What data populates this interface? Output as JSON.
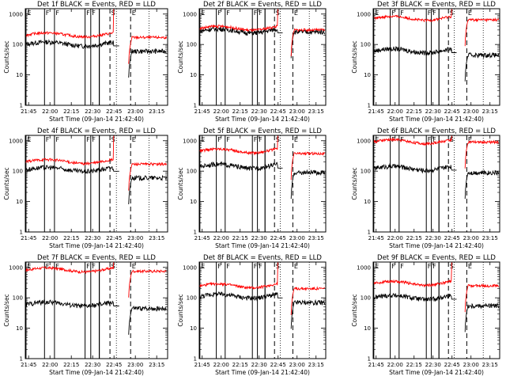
{
  "colors": {
    "events": "#000000",
    "lld": "#ff0000",
    "frame": "#000000",
    "background": "#ffffff"
  },
  "chart_data": [
    {
      "type": "line",
      "title": "Det 1f BLACK = Events, RED = LLD",
      "xlabel": "Start Time (09-Jan-14 21:42:40)",
      "ylabel": "Counts/sec",
      "events_level": 100,
      "lld_level": 200,
      "events_after": 60,
      "lld_after": 170
    },
    {
      "type": "line",
      "title": "Det 2f BLACK = Events, RED = LLD",
      "xlabel": "Start Time (09-Jan-14 21:42:40)",
      "ylabel": "Counts/sec",
      "events_level": 270,
      "lld_level": 330,
      "events_after": 260,
      "lld_after": 300
    },
    {
      "type": "line",
      "title": "Det 3f BLACK = Events, RED = LLD",
      "xlabel": "Start Time (09-Jan-14 21:42:40)",
      "ylabel": "Counts/sec",
      "events_level": 60,
      "lld_level": 700,
      "events_after": 45,
      "lld_after": 650
    },
    {
      "type": "line",
      "title": "Det 4f BLACK = Events, RED = LLD",
      "xlabel": "Start Time (09-Jan-14 21:42:40)",
      "ylabel": "Counts/sec",
      "events_level": 110,
      "lld_level": 200,
      "events_after": 60,
      "lld_after": 170
    },
    {
      "type": "line",
      "title": "Det 5f BLACK = Events, RED = LLD",
      "xlabel": "Start Time (09-Jan-14 21:42:40)",
      "ylabel": "Counts/sec",
      "events_level": 140,
      "lld_level": 450,
      "events_after": 90,
      "lld_after": 380
    },
    {
      "type": "line",
      "title": "Det 6f BLACK = Events, RED = LLD",
      "xlabel": "Start Time (09-Jan-14 21:42:40)",
      "ylabel": "Counts/sec",
      "events_level": 120,
      "lld_level": 900,
      "events_after": 90,
      "lld_after": 900
    },
    {
      "type": "line",
      "title": "Det 7f BLACK = Events, RED = LLD",
      "xlabel": "Start Time (09-Jan-14 21:42:40)",
      "ylabel": "Counts/sec",
      "events_level": 60,
      "lld_level": 800,
      "events_after": 45,
      "lld_after": 750
    },
    {
      "type": "line",
      "title": "Det 8f BLACK = Events, RED = LLD",
      "xlabel": "Start Time (09-Jan-14 21:42:40)",
      "ylabel": "Counts/sec",
      "events_level": 110,
      "lld_level": 240,
      "events_after": 70,
      "lld_after": 200
    },
    {
      "type": "line",
      "title": "Det 9f BLACK = Events, RED = LLD",
      "xlabel": "Start Time (09-Jan-14 21:42:40)",
      "ylabel": "Counts/sec",
      "events_level": 100,
      "lld_level": 290,
      "events_after": 55,
      "lld_after": 250
    }
  ],
  "shared": {
    "xlim": [
      "21:42:40",
      "23:22:00"
    ],
    "ylim": [
      1,
      1000
    ],
    "yscale": "log",
    "x_ticks": [
      "21:45",
      "22:00",
      "22:15",
      "22:30",
      "22:45",
      "23:00",
      "23:15"
    ],
    "x_tick_minutes": [
      2.33,
      17.33,
      32.33,
      47.33,
      62.33,
      77.33,
      92.33
    ],
    "y_ticks": [
      "1",
      "10",
      "100",
      "1000"
    ],
    "y_tick_values": [
      1,
      10,
      100,
      1000
    ],
    "markers": [
      {
        "label": "E",
        "minute": 0.5,
        "style": "solid"
      },
      {
        "label": "F",
        "minute": 13.5,
        "style": "solid"
      },
      {
        "label": "F",
        "minute": 20.5,
        "style": "solid"
      },
      {
        "label": "F",
        "minute": 42.0,
        "style": "solid"
      },
      {
        "label": "F",
        "minute": 46.0,
        "style": "solid"
      },
      {
        "label": "S",
        "minute": 59.5,
        "style": "dashed"
      },
      {
        "label": "E",
        "minute": 74.0,
        "style": "dashed"
      }
    ],
    "extra_lines": [
      {
        "minute": 52.0,
        "style": "solid"
      },
      {
        "minute": 64.0,
        "style": "dotted"
      },
      {
        "minute": 87.0,
        "style": "dotted"
      }
    ],
    "transition_minute": 62.0,
    "gap_minutes": [
      66.0,
      72.5
    ]
  }
}
